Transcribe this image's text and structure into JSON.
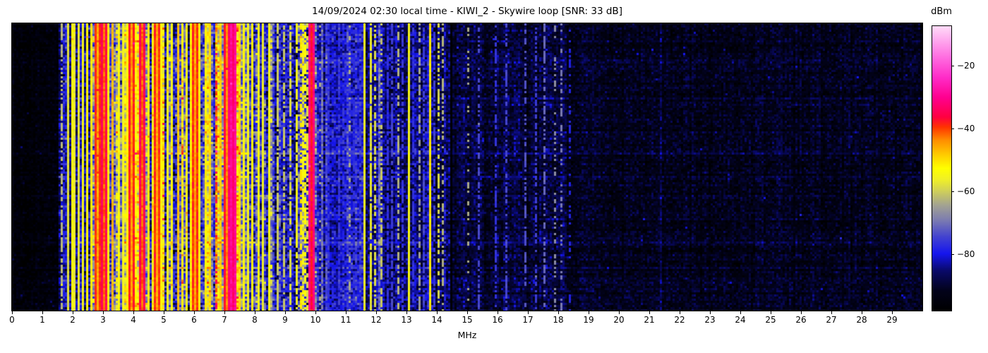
{
  "title": "14/09/2024 02:30 local time - KIWI_2 - Skywire loop [SNR: 33 dB]",
  "axes": {
    "x_label": "MHz",
    "x_range": [
      0,
      30
    ],
    "x_ticks": [
      "0",
      "1",
      "2",
      "3",
      "4",
      "5",
      "6",
      "7",
      "8",
      "9",
      "10",
      "11",
      "12",
      "13",
      "14",
      "15",
      "16",
      "17",
      "18",
      "19",
      "20",
      "21",
      "22",
      "23",
      "24",
      "25",
      "26",
      "27",
      "28",
      "29"
    ]
  },
  "colorbar": {
    "label": "dBm",
    "tick_labels": [
      "−20",
      "−40",
      "−60",
      "−80"
    ],
    "tick_values": [
      -20,
      -40,
      -60,
      -80
    ],
    "vmin": -98,
    "vmax": -7.5,
    "stops": [
      [
        0.0,
        "#000000"
      ],
      [
        0.07,
        "#02021a"
      ],
      [
        0.14,
        "#090968"
      ],
      [
        0.2,
        "#1515ee"
      ],
      [
        0.26,
        "#4343cf"
      ],
      [
        0.32,
        "#7d7daf"
      ],
      [
        0.37,
        "#a2a292"
      ],
      [
        0.42,
        "#cfcf5a"
      ],
      [
        0.46,
        "#efef28"
      ],
      [
        0.5,
        "#ffff00"
      ],
      [
        0.545,
        "#ffcf00"
      ],
      [
        0.6,
        "#ff8c00"
      ],
      [
        0.645,
        "#ff3300"
      ],
      [
        0.68,
        "#ff0040"
      ],
      [
        0.75,
        "#ff0090"
      ],
      [
        0.82,
        "#ff2cc8"
      ],
      [
        0.89,
        "#ff6ce0"
      ],
      [
        0.95,
        "#ffa8ee"
      ],
      [
        1.0,
        "#ffdcf8"
      ]
    ]
  },
  "chart_data": {
    "type": "heatmap",
    "subtype": "radio-spectrogram-waterfall",
    "title": "14/09/2024 02:30 local time - KIWI_2 - Skywire loop [SNR: 33 dB]",
    "xlabel": "MHz",
    "x_range": [
      0,
      30
    ],
    "y_axis": "time (no tick labels shown)",
    "value_unit": "dBm",
    "value_range": [
      -98,
      -7.5
    ],
    "seed": 7,
    "noise": {
      "speckle_p": 0.004,
      "row_var": 1.2,
      "row_streak_p": 0.08,
      "row_streak_boost": 2.6
    },
    "bands_format": [
      "from_MHz",
      "to_MHz",
      "base_dBm",
      "col_var",
      "cell_var",
      "gap_p",
      "hot_p",
      "row_sens"
    ],
    "bands": [
      [
        0.0,
        1.55,
        -95.5,
        1.0,
        2.2,
        0.0,
        0.0,
        0.6
      ],
      [
        1.55,
        2.45,
        -82.5,
        3.5,
        4.5,
        0.06,
        0.03,
        1.0
      ],
      [
        2.45,
        5.15,
        -65.0,
        8.0,
        6.0,
        0.24,
        0.08,
        1.6
      ],
      [
        5.15,
        6.35,
        -69.0,
        9.0,
        6.0,
        0.3,
        0.06,
        1.6
      ],
      [
        6.35,
        7.55,
        -61.0,
        7.0,
        6.0,
        0.16,
        0.1,
        1.5
      ],
      [
        7.55,
        8.55,
        -70.0,
        8.0,
        6.0,
        0.28,
        0.05,
        1.5
      ],
      [
        8.55,
        9.45,
        -80.0,
        5.0,
        5.0,
        0.14,
        0.03,
        1.2
      ],
      [
        9.45,
        10.05,
        -76.0,
        6.0,
        6.0,
        0.18,
        0.05,
        1.3
      ],
      [
        10.05,
        11.55,
        -80.0,
        2.2,
        3.4,
        0.02,
        0.01,
        1.0
      ],
      [
        11.55,
        12.3,
        -83.0,
        3.0,
        4.0,
        0.05,
        0.02,
        1.0
      ],
      [
        12.3,
        14.5,
        -86.5,
        2.4,
        3.4,
        0.02,
        0.01,
        1.0
      ],
      [
        14.5,
        18.3,
        -89.5,
        1.6,
        3.0,
        0.01,
        0.005,
        0.9
      ],
      [
        18.3,
        30.0,
        -92.5,
        1.0,
        2.6,
        0.0,
        0.002,
        0.8
      ]
    ],
    "lines_format": [
      "freq_MHz",
      "level_dBm",
      "duty",
      "halfwidth_MHz"
    ],
    "lines": [
      [
        1.62,
        -62,
        0.7,
        0.022
      ],
      [
        1.85,
        -58,
        1,
        0.022
      ],
      [
        1.98,
        -54,
        1,
        0.022
      ],
      [
        2.08,
        -57,
        1,
        0.022
      ],
      [
        2.18,
        -57,
        1,
        0.022
      ],
      [
        2.32,
        -55,
        1,
        0.022
      ],
      [
        2.46,
        -53,
        1,
        0.022
      ],
      [
        2.6,
        -52,
        1,
        0.022
      ],
      [
        2.8,
        -46,
        1,
        0.03
      ],
      [
        3.02,
        -42,
        1,
        0.035
      ],
      [
        3.15,
        -52,
        1,
        0.022
      ],
      [
        3.3,
        -47,
        1,
        0.022
      ],
      [
        3.5,
        -53,
        1,
        0.022
      ],
      [
        3.65,
        -55,
        1,
        0.022
      ],
      [
        3.8,
        -52,
        1,
        0.022
      ],
      [
        3.95,
        -45,
        1,
        0.03
      ],
      [
        4.1,
        -54,
        1,
        0.022
      ],
      [
        4.32,
        -42,
        1,
        0.035
      ],
      [
        4.5,
        -52,
        1,
        0.022
      ],
      [
        4.65,
        -55,
        1,
        0.022
      ],
      [
        4.8,
        -46,
        1,
        0.03
      ],
      [
        4.95,
        -53,
        1,
        0.022
      ],
      [
        5.1,
        -55,
        1,
        0.022
      ],
      [
        5.25,
        -54,
        1,
        0.022
      ],
      [
        5.45,
        -48,
        1,
        0.022
      ],
      [
        5.6,
        -53,
        1,
        0.022
      ],
      [
        5.75,
        -55,
        1,
        0.022
      ],
      [
        5.9,
        -52,
        1,
        0.022
      ],
      [
        6.05,
        -46,
        1,
        0.03
      ],
      [
        6.2,
        -53,
        1,
        0.022
      ],
      [
        6.4,
        -52,
        1,
        0.022
      ],
      [
        6.55,
        -50,
        1,
        0.022
      ],
      [
        6.7,
        -52,
        1,
        0.022
      ],
      [
        6.9,
        -49,
        1,
        0.022
      ],
      [
        7.05,
        -44,
        1,
        0.03
      ],
      [
        7.22,
        -40,
        1,
        0.035
      ],
      [
        7.32,
        -36,
        1,
        0.04
      ],
      [
        7.5,
        -50,
        1,
        0.022
      ],
      [
        7.65,
        -53,
        1,
        0.022
      ],
      [
        7.8,
        -55,
        1,
        0.022
      ],
      [
        7.95,
        -52,
        1,
        0.022
      ],
      [
        8.1,
        -54,
        1,
        0.022
      ],
      [
        8.28,
        -56,
        1,
        0.022
      ],
      [
        8.45,
        -55,
        1,
        0.022
      ],
      [
        8.75,
        -60,
        0.8,
        0.022
      ],
      [
        8.95,
        -60,
        0.7,
        0.022
      ],
      [
        9.15,
        -58,
        0.8,
        0.022
      ],
      [
        9.4,
        -55,
        0.8,
        0.022
      ],
      [
        9.5,
        -50,
        0.6,
        0.022
      ],
      [
        9.57,
        -54,
        0.6,
        0.022
      ],
      [
        9.65,
        -52,
        0.6,
        0.022
      ],
      [
        9.75,
        -58,
        0.6,
        0.022
      ],
      [
        9.88,
        -38,
        1,
        0.035
      ],
      [
        10.15,
        -62,
        0.25,
        0.022
      ],
      [
        10.4,
        -76,
        0.6,
        0.022
      ],
      [
        10.75,
        -75,
        0.6,
        0.022
      ],
      [
        11.1,
        -62,
        0.3,
        0.022
      ],
      [
        11.3,
        -76,
        0.6,
        0.022
      ],
      [
        11.65,
        -56,
        1,
        0.022
      ],
      [
        11.8,
        -57,
        0.9,
        0.022
      ],
      [
        11.95,
        -58,
        0.6,
        0.022
      ],
      [
        12.15,
        -60,
        0.55,
        0.022
      ],
      [
        12.35,
        -76,
        0.7,
        0.022
      ],
      [
        12.5,
        -74,
        0.7,
        0.022
      ],
      [
        12.7,
        -62,
        0.55,
        0.022
      ],
      [
        12.85,
        -75,
        0.7,
        0.022
      ],
      [
        13.05,
        -55,
        1,
        0.022
      ],
      [
        13.2,
        -76,
        0.7,
        0.022
      ],
      [
        13.4,
        -64,
        0.6,
        0.022
      ],
      [
        13.55,
        -74,
        0.7,
        0.022
      ],
      [
        13.75,
        -51,
        1,
        0.022
      ],
      [
        13.9,
        -75,
        0.7,
        0.022
      ],
      [
        14.08,
        -58,
        0.55,
        0.022
      ],
      [
        14.22,
        -62,
        0.5,
        0.022
      ],
      [
        15.0,
        -62,
        0.22,
        0.022
      ],
      [
        15.4,
        -73,
        0.5,
        0.022
      ],
      [
        15.95,
        -75,
        0.5,
        0.022
      ],
      [
        16.3,
        -73,
        0.55,
        0.022
      ],
      [
        16.95,
        -72,
        0.5,
        0.022
      ],
      [
        17.25,
        -74,
        0.5,
        0.022
      ],
      [
        17.55,
        -70,
        0.55,
        0.022
      ],
      [
        17.9,
        -66,
        0.4,
        0.022
      ],
      [
        18.1,
        -68,
        0.4,
        0.022
      ],
      [
        18.35,
        -77,
        0.4,
        0.022
      ]
    ]
  }
}
